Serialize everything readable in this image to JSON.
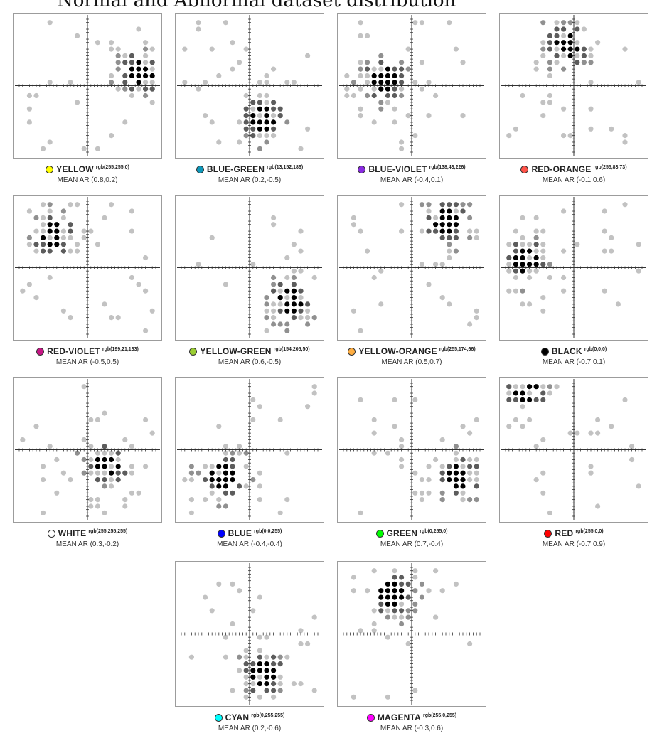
{
  "title": "Normal and Abnormal dataset distribution",
  "chart_data": [
    {
      "type": "scatter",
      "name": "YELLOW",
      "rgb_label": "rgb(255,255,0)",
      "swatch": "#ffff00",
      "mean_label": "MEAN AR (0.8,0.2)",
      "mean": [
        0.8,
        0.2
      ],
      "xlim": [
        -1,
        1
      ],
      "ylim": [
        -1,
        1
      ]
    },
    {
      "type": "scatter",
      "name": "BLUE-GREEN",
      "rgb_label": "rgb(13,152,186)",
      "swatch": "#0d98ba",
      "mean_label": "MEAN AR (0.2,-0.5)",
      "mean": [
        0.2,
        -0.5
      ],
      "xlim": [
        -1,
        1
      ],
      "ylim": [
        -1,
        1
      ]
    },
    {
      "type": "scatter",
      "name": "BLUE-VIOLET",
      "rgb_label": "rgb(138,43,226)",
      "swatch": "#8a2be2",
      "mean_label": "MEAN AR (-0.4,0.1)",
      "mean": [
        -0.4,
        0.1
      ],
      "xlim": [
        -1,
        1
      ],
      "ylim": [
        -1,
        1
      ]
    },
    {
      "type": "scatter",
      "name": "RED-ORANGE",
      "rgb_label": "rgb(255,83,73)",
      "swatch": "#ff5349",
      "mean_label": "MEAN AR (-0.1,0.6)",
      "mean": [
        -0.1,
        0.6
      ],
      "xlim": [
        -1,
        1
      ],
      "ylim": [
        -1,
        1
      ]
    },
    {
      "type": "scatter",
      "name": "RED-VIOLET",
      "rgb_label": "rgb(199,21,133)",
      "swatch": "#c71585",
      "mean_label": "MEAN AR (-0.5,0.5)",
      "mean": [
        -0.5,
        0.5
      ],
      "xlim": [
        -1,
        1
      ],
      "ylim": [
        -1,
        1
      ]
    },
    {
      "type": "scatter",
      "name": "YELLOW-GREEN",
      "rgb_label": "rgb(154,205,50)",
      "swatch": "#9acd32",
      "mean_label": "MEAN AR (0.6,-0.5)",
      "mean": [
        0.6,
        -0.5
      ],
      "xlim": [
        -1,
        1
      ],
      "ylim": [
        -1,
        1
      ]
    },
    {
      "type": "scatter",
      "name": "YELLOW-ORANGE",
      "rgb_label": "rgb(255,174,66)",
      "swatch": "#ffae42",
      "mean_label": "MEAN AR (0.5,0.7)",
      "mean": [
        0.5,
        0.7
      ],
      "xlim": [
        -1,
        1
      ],
      "ylim": [
        -1,
        1
      ]
    },
    {
      "type": "scatter",
      "name": "BLACK",
      "rgb_label": "rgb(0,0,0)",
      "swatch": "#000000",
      "mean_label": "MEAN AR (-0.7,0.1)",
      "mean": [
        -0.7,
        0.1
      ],
      "xlim": [
        -1,
        1
      ],
      "ylim": [
        -1,
        1
      ]
    },
    {
      "type": "scatter",
      "name": "WHITE",
      "rgb_label": "rgb(255,255,255)",
      "swatch": "#ffffff",
      "mean_label": "MEAN AR (0.3,-0.2)",
      "mean": [
        0.3,
        -0.2
      ],
      "xlim": [
        -1,
        1
      ],
      "ylim": [
        -1,
        1
      ]
    },
    {
      "type": "scatter",
      "name": "BLUE",
      "rgb_label": "rgb(0,0,255)",
      "swatch": "#0000ff",
      "mean_label": "MEAN AR (-0.4,-0.4)",
      "mean": [
        -0.4,
        -0.4
      ],
      "xlim": [
        -1,
        1
      ],
      "ylim": [
        -1,
        1
      ]
    },
    {
      "type": "scatter",
      "name": "GREEN",
      "rgb_label": "rgb(0,255,0)",
      "swatch": "#00ff00",
      "mean_label": "MEAN AR (0.7,-0.4)",
      "mean": [
        0.7,
        -0.4
      ],
      "xlim": [
        -1,
        1
      ],
      "ylim": [
        -1,
        1
      ]
    },
    {
      "type": "scatter",
      "name": "RED",
      "rgb_label": "rgb(255,0,0)",
      "swatch": "#ff0000",
      "mean_label": "MEAN AR (-0.7,0.9)",
      "mean": [
        -0.7,
        0.9
      ],
      "xlim": [
        -1,
        1
      ],
      "ylim": [
        -1,
        1
      ]
    },
    {
      "type": "scatter",
      "name": "CYAN",
      "rgb_label": "rgb(0,255,255)",
      "swatch": "#00ffff",
      "mean_label": "MEAN AR (0.2,-0.6)",
      "mean": [
        0.2,
        -0.6
      ],
      "xlim": [
        -1,
        1
      ],
      "ylim": [
        -1,
        1
      ]
    },
    {
      "type": "scatter",
      "name": "MAGENTA",
      "rgb_label": "rgb(255,0,255)",
      "swatch": "#ff00ff",
      "mean_label": "MEAN AR (-0.3,0.6)",
      "mean": [
        -0.3,
        0.6
      ],
      "xlim": [
        -1,
        1
      ],
      "ylim": [
        -1,
        1
      ]
    }
  ]
}
